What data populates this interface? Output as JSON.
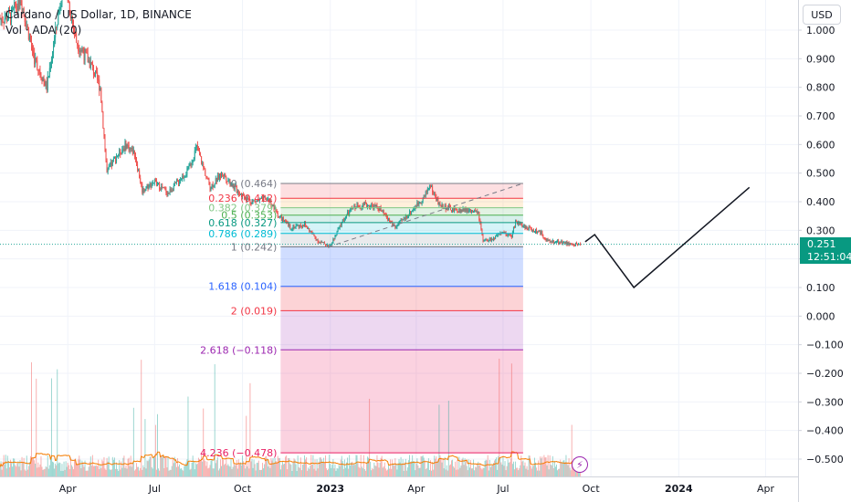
{
  "header": {
    "title": "Cardano / US Dollar, 1D, BINANCE",
    "subtitle": "Vol · ADA (20)"
  },
  "currency_button": "USD",
  "last_price": {
    "value": "0.251",
    "countdown": "12:51:04",
    "color": "#089981"
  },
  "colors": {
    "up": "#26a69a",
    "down": "#ef5350",
    "grid": "#f0f3fa",
    "axis_text": "#131722",
    "volume_up": "rgba(38,166,154,0.45)",
    "volume_down": "rgba(239,83,80,0.45)",
    "volume_ma": "#f57c00",
    "projection": "#131722"
  },
  "icons": {
    "alert_button": "bolt-icon"
  },
  "chart_data": {
    "type": "candlestick",
    "ylim": [
      -0.56,
      1.06
    ],
    "y_ticks": [
      1.0,
      0.9,
      0.8,
      0.7,
      0.6,
      0.5,
      0.4,
      0.3,
      0.2,
      0.1,
      0.0,
      -0.1,
      -0.2,
      -0.3,
      -0.4,
      -0.5
    ],
    "y_tick_labels": [
      "1.000",
      "0.900",
      "0.800",
      "0.700",
      "0.600",
      "0.500",
      "0.400",
      "0.300",
      "0.200",
      "0.100",
      "0.000",
      "−0.100",
      "−0.200",
      "−0.300",
      "−0.400",
      "−0.500"
    ],
    "x_ticks": [
      {
        "date": "2022-04-01",
        "label": "Apr"
      },
      {
        "date": "2022-07-01",
        "label": "Jul"
      },
      {
        "date": "2022-10-01",
        "label": "Oct"
      },
      {
        "date": "2023-01-01",
        "label": "2023"
      },
      {
        "date": "2023-04-01",
        "label": "Apr"
      },
      {
        "date": "2023-07-01",
        "label": "Jul"
      },
      {
        "date": "2023-10-01",
        "label": "Oct"
      },
      {
        "date": "2024-01-01",
        "label": "2024"
      },
      {
        "date": "2024-04-01",
        "label": "Apr"
      }
    ],
    "x_range": [
      "2022-01-20",
      "2024-05-05"
    ],
    "price_path": [
      [
        "2022-01-20",
        1.04
      ],
      [
        "2022-02-01",
        1.05
      ],
      [
        "2022-02-10",
        1.12
      ],
      [
        "2022-02-25",
        0.9
      ],
      [
        "2022-03-10",
        0.8
      ],
      [
        "2022-03-28",
        1.18
      ],
      [
        "2022-04-10",
        0.96
      ],
      [
        "2022-04-25",
        0.88
      ],
      [
        "2022-05-05",
        0.8
      ],
      [
        "2022-05-12",
        0.5
      ],
      [
        "2022-05-20",
        0.55
      ],
      [
        "2022-06-01",
        0.6
      ],
      [
        "2022-06-10",
        0.57
      ],
      [
        "2022-06-18",
        0.44
      ],
      [
        "2022-06-30",
        0.47
      ],
      [
        "2022-07-15",
        0.43
      ],
      [
        "2022-08-05",
        0.51
      ],
      [
        "2022-08-14",
        0.59
      ],
      [
        "2022-08-28",
        0.45
      ],
      [
        "2022-09-10",
        0.5
      ],
      [
        "2022-09-25",
        0.44
      ],
      [
        "2022-10-10",
        0.4
      ],
      [
        "2022-10-28",
        0.41
      ],
      [
        "2022-11-08",
        0.35
      ],
      [
        "2022-11-20",
        0.31
      ],
      [
        "2022-12-05",
        0.32
      ],
      [
        "2022-12-20",
        0.26
      ],
      [
        "2023-01-01",
        0.245
      ],
      [
        "2023-01-15",
        0.34
      ],
      [
        "2023-01-25",
        0.38
      ],
      [
        "2023-02-05",
        0.39
      ],
      [
        "2023-02-20",
        0.38
      ],
      [
        "2023-03-10",
        0.31
      ],
      [
        "2023-03-25",
        0.36
      ],
      [
        "2023-04-10",
        0.42
      ],
      [
        "2023-04-15",
        0.46
      ],
      [
        "2023-04-25",
        0.39
      ],
      [
        "2023-05-10",
        0.37
      ],
      [
        "2023-05-25",
        0.37
      ],
      [
        "2023-06-05",
        0.36
      ],
      [
        "2023-06-10",
        0.26
      ],
      [
        "2023-06-20",
        0.27
      ],
      [
        "2023-07-01",
        0.29
      ],
      [
        "2023-07-10",
        0.28
      ],
      [
        "2023-07-14",
        0.33
      ],
      [
        "2023-07-25",
        0.31
      ],
      [
        "2023-08-10",
        0.29
      ],
      [
        "2023-08-17",
        0.26
      ],
      [
        "2023-08-30",
        0.26
      ],
      [
        "2023-09-10",
        0.25
      ],
      [
        "2023-09-20",
        0.251
      ]
    ],
    "fibonacci": {
      "start_date": "2022-11-10",
      "end_date": "2023-07-22",
      "levels": [
        {
          "label": "0 (0.464)",
          "price": 0.464,
          "color": "#787b86",
          "fill": "rgba(242,54,69,0.16)"
        },
        {
          "label": "0.236 (0.412)",
          "price": 0.412,
          "color": "#f23645",
          "fill": "rgba(255,152,0,0.14)"
        },
        {
          "label": "0.382 (0.379)",
          "price": 0.379,
          "color": "#81c784",
          "fill": "rgba(76,175,80,0.16)"
        },
        {
          "label": "0.5 (0.353)",
          "price": 0.353,
          "color": "#4caf50",
          "fill": "rgba(8,153,129,0.16)"
        },
        {
          "label": "0.618 (0.327)",
          "price": 0.327,
          "color": "#089981",
          "fill": "rgba(0,188,212,0.16)"
        },
        {
          "label": "0.786 (0.289)",
          "price": 0.289,
          "color": "#00bcd4",
          "fill": "rgba(120,123,134,0.16)"
        },
        {
          "label": "1 (0.242)",
          "price": 0.242,
          "color": "#787b86",
          "fill": "rgba(41,98,255,0.22)"
        },
        {
          "label": "1.618 (0.104)",
          "price": 0.104,
          "color": "#2962ff",
          "fill": "rgba(242,54,69,0.22)"
        },
        {
          "label": "2 (0.019)",
          "price": 0.019,
          "color": "#f23645",
          "fill": "rgba(156,39,176,0.18)"
        },
        {
          "label": "2.618 (−0.118)",
          "price": -0.118,
          "color": "#9c27b0",
          "fill": "rgba(233,30,99,0.20)"
        },
        {
          "label": "4.236 (−0.478)",
          "price": -0.478,
          "color": "#e91e63",
          "fill": "rgba(233,30,99,0.20)"
        }
      ],
      "trend_line": [
        [
          "2022-12-30",
          0.242
        ],
        [
          "2023-07-22",
          0.464
        ]
      ]
    },
    "projection": [
      [
        "2023-09-25",
        0.26
      ],
      [
        "2023-10-05",
        0.285
      ],
      [
        "2023-11-15",
        0.1
      ],
      [
        "2024-03-15",
        0.45
      ]
    ]
  }
}
